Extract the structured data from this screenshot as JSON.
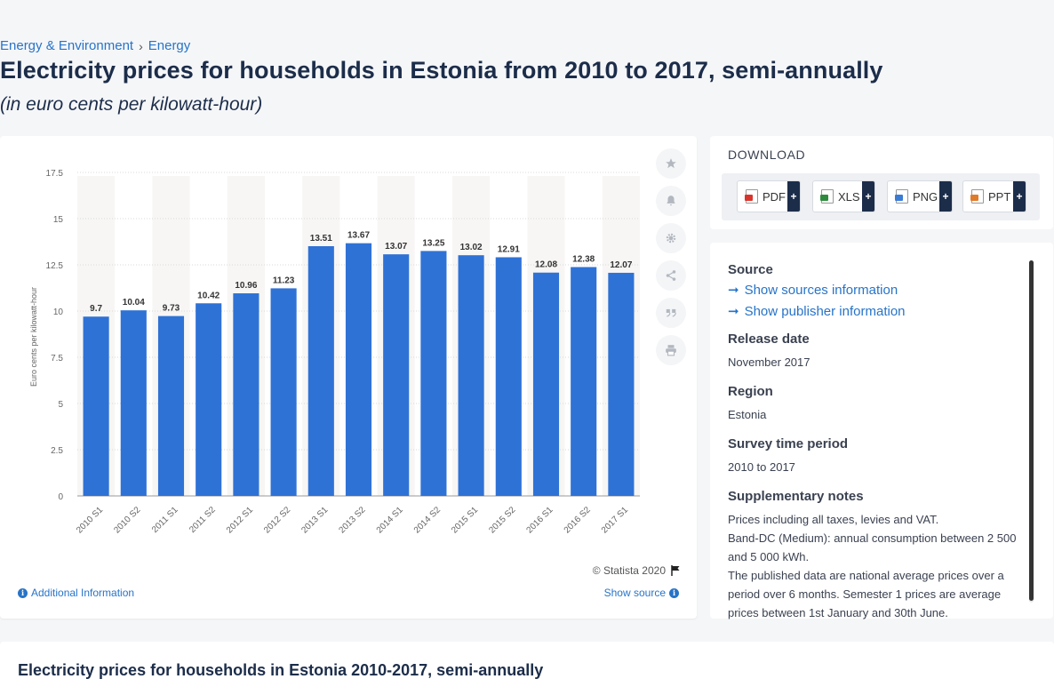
{
  "breadcrumb": {
    "items": [
      "Energy & Environment",
      "Energy"
    ],
    "separator": "›"
  },
  "page": {
    "title": "Electricity prices for households in Estonia from 2010 to 2017, semi-annually",
    "subtitle": "(in euro cents per kilowatt-hour)"
  },
  "chart_data": {
    "type": "bar",
    "ylabel": "Euro cents per kilowatt-hour",
    "xlabel": "",
    "ylim": [
      0,
      17.5
    ],
    "yticks": [
      "0",
      "2.5",
      "5",
      "7.5",
      "10",
      "12.5",
      "15",
      "17.5"
    ],
    "categories": [
      "2010 S1",
      "2010 S2",
      "2011 S1",
      "2011 S2",
      "2012 S1",
      "2012 S2",
      "2013 S1",
      "2013 S2",
      "2014 S1",
      "2014 S2",
      "2015 S1",
      "2015 S2",
      "2016 S1",
      "2016 S2",
      "2017 S1"
    ],
    "values": [
      9.7,
      10.04,
      9.73,
      10.42,
      10.96,
      11.23,
      13.51,
      13.67,
      13.07,
      13.25,
      13.02,
      12.91,
      12.08,
      12.38,
      12.07
    ],
    "value_labels": [
      "9.7",
      "10.04",
      "9.73",
      "10.42",
      "10.96",
      "11.23",
      "13.51",
      "13.67",
      "13.07",
      "13.25",
      "13.02",
      "12.91",
      "12.08",
      "12.38",
      "12.07"
    ],
    "bar_color": "#2f72d6",
    "grid": true,
    "band_colors": [
      "#f7f6f5",
      "#ffffff"
    ]
  },
  "chart_footer": {
    "copyright": "© Statista 2020",
    "additional_info": "Additional Information",
    "show_source": "Show source"
  },
  "toolbar": {
    "icons": [
      "star-icon",
      "bell-icon",
      "gear-icon",
      "share-icon",
      "quote-icon",
      "print-icon"
    ]
  },
  "download": {
    "title": "DOWNLOAD",
    "buttons": [
      {
        "label": "PDF",
        "color": "#d9342b"
      },
      {
        "label": "XLS",
        "color": "#2e8b3d"
      },
      {
        "label": "PNG",
        "color": "#3a7bd5"
      },
      {
        "label": "PPT",
        "color": "#e07b2a"
      }
    ],
    "plus": "+"
  },
  "info": {
    "source_label": "Source",
    "show_sources": "Show sources information",
    "show_publisher": "Show publisher information",
    "release_label": "Release date",
    "release_value": "November 2017",
    "region_label": "Region",
    "region_value": "Estonia",
    "survey_label": "Survey time period",
    "survey_value": "2010 to 2017",
    "notes_label": "Supplementary notes",
    "notes_1": "Prices including all taxes, levies and VAT.",
    "notes_2": "Band-DC (Medium): annual consumption between 2 500 and 5 000 kWh.",
    "notes_3": "The published data are national average prices over a period over 6 months. Semester 1 prices are average prices between 1st January and 30th June."
  },
  "bottom": {
    "title": "Electricity prices for households in Estonia 2010-2017, semi-annually"
  }
}
